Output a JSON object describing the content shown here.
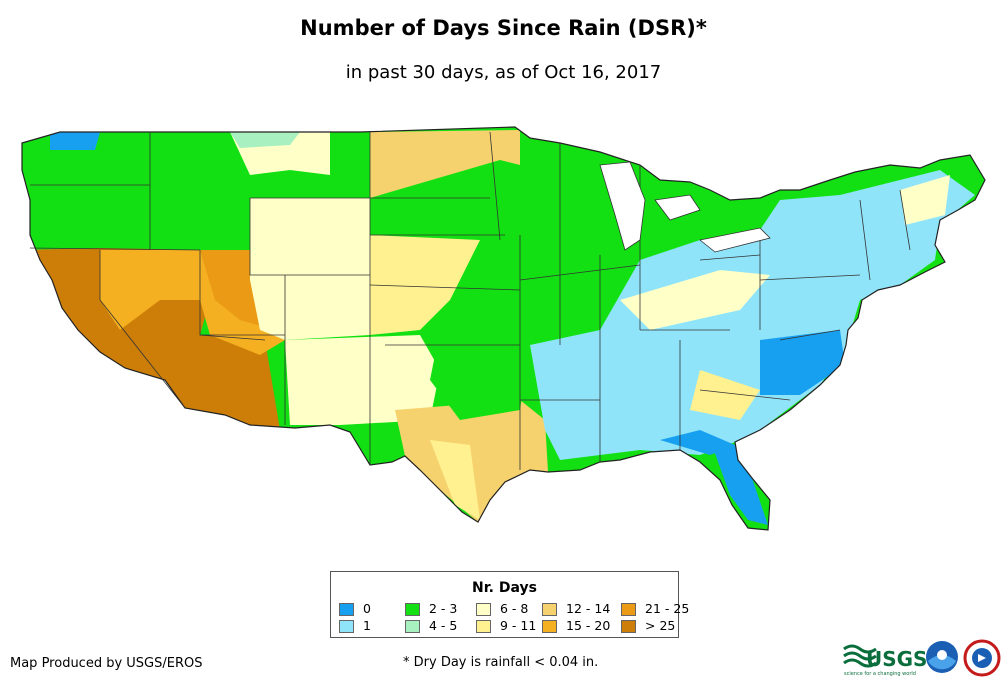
{
  "title": "Number of Days Since Rain (DSR)*",
  "subtitle": "in past 30 days, as of Oct 16, 2017",
  "legend": {
    "title": "Nr. Days",
    "items": [
      {
        "label": "0",
        "color": "#18a0f0"
      },
      {
        "label": "1",
        "color": "#90e4fa"
      },
      {
        "label": "2 - 3",
        "color": "#12e012"
      },
      {
        "label": "4 - 5",
        "color": "#a8f0c0"
      },
      {
        "label": "6 - 8",
        "color": "#ffffc8"
      },
      {
        "label": "9 - 11",
        "color": "#fff090"
      },
      {
        "label": "12 - 14",
        "color": "#f5d26e"
      },
      {
        "label": "15 - 20",
        "color": "#f4b020"
      },
      {
        "label": "21 - 25",
        "color": "#ea9a14"
      },
      {
        "label": "> 25",
        "color": "#cc7e08"
      }
    ]
  },
  "footer": {
    "credit": "Map Produced by USGS/EROS",
    "note": "* Dry Day is rainfall < 0.04 in."
  },
  "logos": {
    "usgs": "USGS",
    "usgs_tagline": "science for a changing world",
    "noaa": "NOAA",
    "nws": "NATIONAL WEATHER SERVICE"
  },
  "map": {
    "region": "Contiguous United States",
    "background": "#ffffff",
    "border_color": "#222222"
  }
}
